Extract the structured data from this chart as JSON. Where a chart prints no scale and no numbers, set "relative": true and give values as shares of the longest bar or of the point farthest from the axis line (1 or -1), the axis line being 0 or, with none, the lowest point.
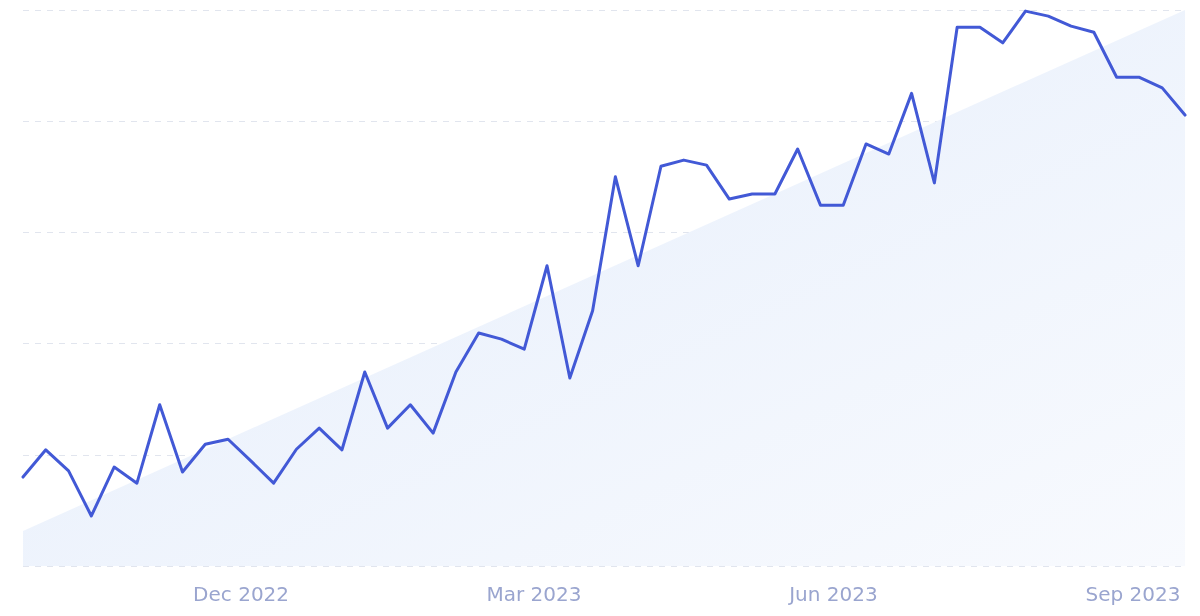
{
  "chart_data": {
    "type": "line",
    "relative": true,
    "grid": "y",
    "line_style": "solid",
    "marker": "none",
    "x": [
      "2022-09-25",
      "2022-10-02",
      "2022-10-09",
      "2022-10-16",
      "2022-10-23",
      "2022-10-30",
      "2022-11-06",
      "2022-11-13",
      "2022-11-20",
      "2022-11-27",
      "2022-12-04",
      "2022-12-11",
      "2022-12-18",
      "2022-12-25",
      "2023-01-01",
      "2023-01-08",
      "2023-01-15",
      "2023-01-22",
      "2023-01-29",
      "2023-02-05",
      "2023-02-12",
      "2023-02-19",
      "2023-02-26",
      "2023-03-05",
      "2023-03-12",
      "2023-03-19",
      "2023-03-26",
      "2023-04-02",
      "2023-04-09",
      "2023-04-16",
      "2023-04-23",
      "2023-04-30",
      "2023-05-07",
      "2023-05-14",
      "2023-05-21",
      "2023-05-28",
      "2023-06-04",
      "2023-06-11",
      "2023-06-18",
      "2023-06-25",
      "2023-07-02",
      "2023-07-09",
      "2023-07-16",
      "2023-07-23",
      "2023-07-30",
      "2023-08-06",
      "2023-08-13",
      "2023-08-20",
      "2023-08-27",
      "2023-09-03",
      "2023-09-10",
      "2023-09-17"
    ],
    "xlim": [
      "2022-09-25",
      "2023-09-17"
    ],
    "xticks": [
      {
        "value": "2022-12-01",
        "label": "Dec 2022"
      },
      {
        "value": "2023-03-01",
        "label": "Mar 2023"
      },
      {
        "value": "2023-06-01",
        "label": "Jun 2023"
      },
      {
        "value": "2023-09-01",
        "label": "Sep 2023"
      }
    ],
    "series": [
      {
        "type": "area",
        "color": "#e4edfb",
        "x": [
          "2022-09-25",
          "2023-09-17"
        ],
        "values": [
          0.063,
          1.0
        ]
      },
      {
        "color": "#4259d6",
        "values": [
          0.16,
          0.209,
          0.171,
          0.09,
          0.178,
          0.149,
          0.29,
          0.169,
          0.219,
          0.228,
          0.189,
          0.149,
          0.21,
          0.248,
          0.209,
          0.349,
          0.248,
          0.29,
          0.239,
          0.349,
          0.419,
          0.408,
          0.39,
          0.54,
          0.338,
          0.459,
          0.7,
          0.54,
          0.719,
          0.73,
          0.721,
          0.66,
          0.669,
          0.669,
          0.75,
          0.649,
          0.649,
          0.759,
          0.741,
          0.85,
          0.689,
          0.969,
          0.969,
          0.941,
          0.998,
          0.989,
          0.971,
          0.96,
          0.879,
          0.879,
          0.86,
          0.811
        ]
      }
    ]
  }
}
